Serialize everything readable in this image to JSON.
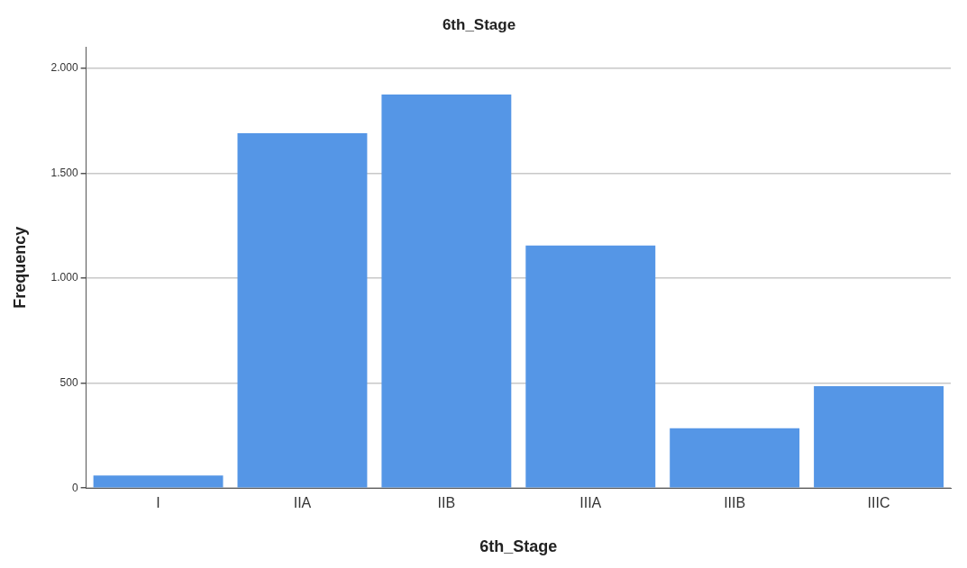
{
  "chart_data": {
    "type": "bar",
    "title": "6th_Stage",
    "xlabel": "6th_Stage",
    "ylabel": "Frequency",
    "categories": [
      "I",
      "IIA",
      "IIB",
      "IIIA",
      "IIIB",
      "IIIC"
    ],
    "values": [
      60,
      1690,
      1875,
      1155,
      285,
      485
    ],
    "color": "#5596e6",
    "ylim": [
      0,
      2100
    ],
    "yticks": [
      0,
      500,
      {
        "value": 1000,
        "label": "1.000"
      },
      {
        "value": 1500,
        "label": "1.500"
      },
      {
        "value": 2000,
        "label": "2.000"
      }
    ],
    "grid": "y",
    "legend": false
  }
}
